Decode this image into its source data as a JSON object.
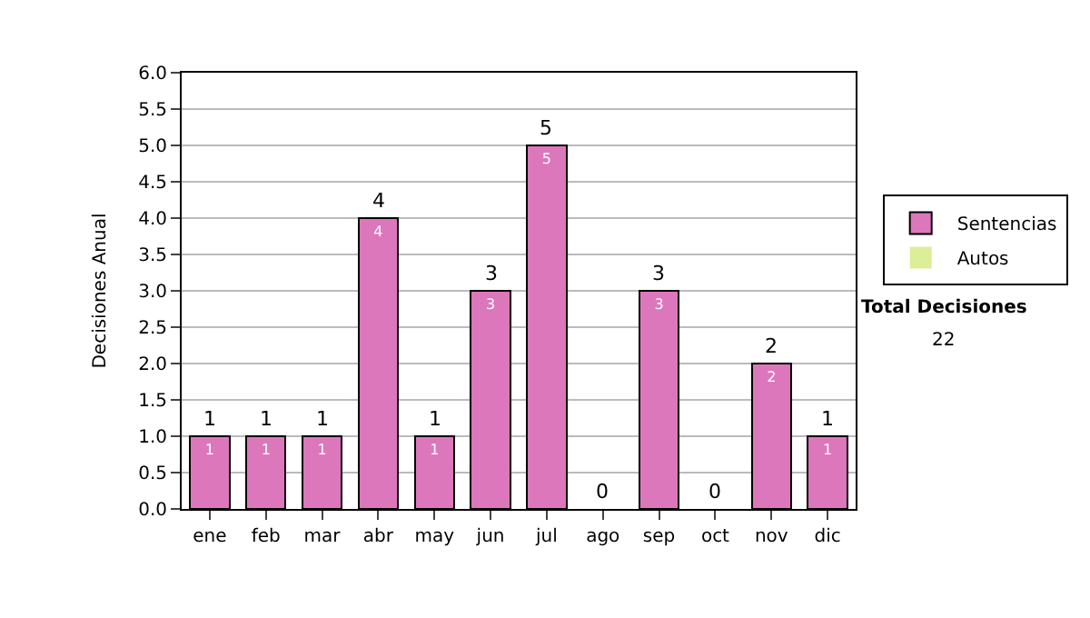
{
  "chart_data": {
    "type": "bar",
    "stacked": true,
    "ylabel": "Decisiones Anual",
    "categories": [
      "ene",
      "feb",
      "mar",
      "abr",
      "may",
      "jun",
      "jul",
      "ago",
      "sep",
      "oct",
      "nov",
      "dic"
    ],
    "series": [
      {
        "name": "Sentencias",
        "color": "#dd77bb",
        "values": [
          1,
          1,
          1,
          4,
          1,
          3,
          5,
          0,
          3,
          0,
          2,
          1
        ],
        "value_labels": [
          "1",
          "1",
          "1",
          "4",
          "1",
          "3",
          "5",
          null,
          "3",
          null,
          "2",
          "1"
        ]
      },
      {
        "name": "Autos",
        "color": "#ddee99",
        "values": [
          0,
          0,
          0,
          0,
          0,
          0,
          0,
          0,
          0,
          0,
          0,
          0
        ]
      }
    ],
    "totals": [
      "1",
      "1",
      "1",
      "4",
      "1",
      "3",
      "5",
      "0",
      "3",
      "0",
      "2",
      "1"
    ],
    "ylim": [
      0,
      6
    ],
    "yticks": [
      {
        "value": 0,
        "label": "0.0"
      },
      {
        "value": 0.5,
        "label": "0.5"
      },
      {
        "value": 1,
        "label": "1.0"
      },
      {
        "value": 1.5,
        "label": "1.5"
      },
      {
        "value": 2,
        "label": "2.0"
      },
      {
        "value": 2.5,
        "label": "2.5"
      },
      {
        "value": 3,
        "label": "3.0"
      },
      {
        "value": 3.5,
        "label": "3.5"
      },
      {
        "value": 4,
        "label": "4.0"
      },
      {
        "value": 4.5,
        "label": "4.5"
      },
      {
        "value": 5,
        "label": "5.0"
      },
      {
        "value": 5.5,
        "label": "5.5"
      },
      {
        "value": 6,
        "label": "6.0"
      }
    ],
    "grid": "y",
    "legend": "right",
    "annotations": [
      "Total Decisiones",
      "22"
    ]
  }
}
